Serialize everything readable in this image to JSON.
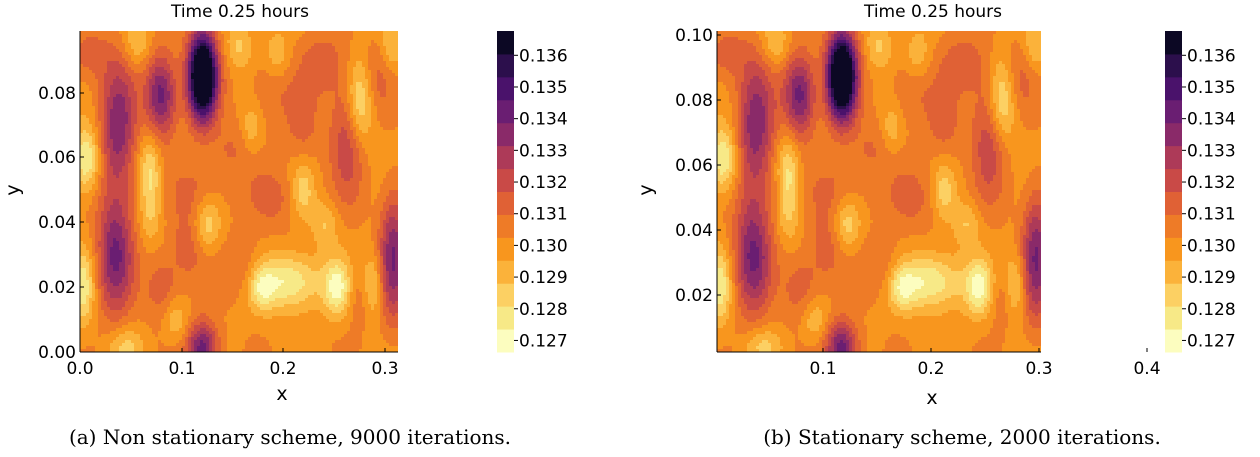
{
  "palette": [
    "#fcfdbf",
    "#f7e987",
    "#fcd063",
    "#fbb23a",
    "#f8961e",
    "#ee7b27",
    "#e06135",
    "#c94a47",
    "#ad3a58",
    "#8a2a69",
    "#6a1e72",
    "#4a126b",
    "#2c0f4c",
    "#0c0824"
  ],
  "chart_data": [
    {
      "type": "heatmap",
      "title": "Time 0.25 hours",
      "xlabel": "x",
      "ylabel": "y",
      "xlim": [
        0.0,
        0.4
      ],
      "ylim": [
        0.0,
        0.1
      ],
      "xticks": [
        "0.0",
        "0.1",
        "0.2",
        "0.3"
      ],
      "yticks": [
        "0.00",
        "0.02",
        "0.04",
        "0.06",
        "0.08"
      ],
      "colorbar": {
        "ticks": [
          "0.127",
          "0.128",
          "0.129",
          "0.130",
          "0.131",
          "0.132",
          "0.133",
          "0.134",
          "0.135",
          "0.136"
        ]
      },
      "caption": "(a) Non stationary scheme, 9000 iterations."
    },
    {
      "type": "heatmap",
      "title": "Time 0.25 hours",
      "xlabel": "x",
      "ylabel": "y",
      "xlim": [
        0.0,
        0.4
      ],
      "ylim": [
        0.0,
        0.1
      ],
      "xticks": [
        "0.1",
        "0.2",
        "0.3",
        "0.4"
      ],
      "yticks": [
        "0.02",
        "0.04",
        "0.06",
        "0.08",
        "0.10"
      ],
      "colorbar": {
        "ticks": [
          "0.127",
          "0.128",
          "0.129",
          "0.130",
          "0.131",
          "0.132",
          "0.133",
          "0.134",
          "0.135",
          "0.136"
        ]
      },
      "caption": "(b) Stationary scheme, 2000 iterations."
    }
  ]
}
